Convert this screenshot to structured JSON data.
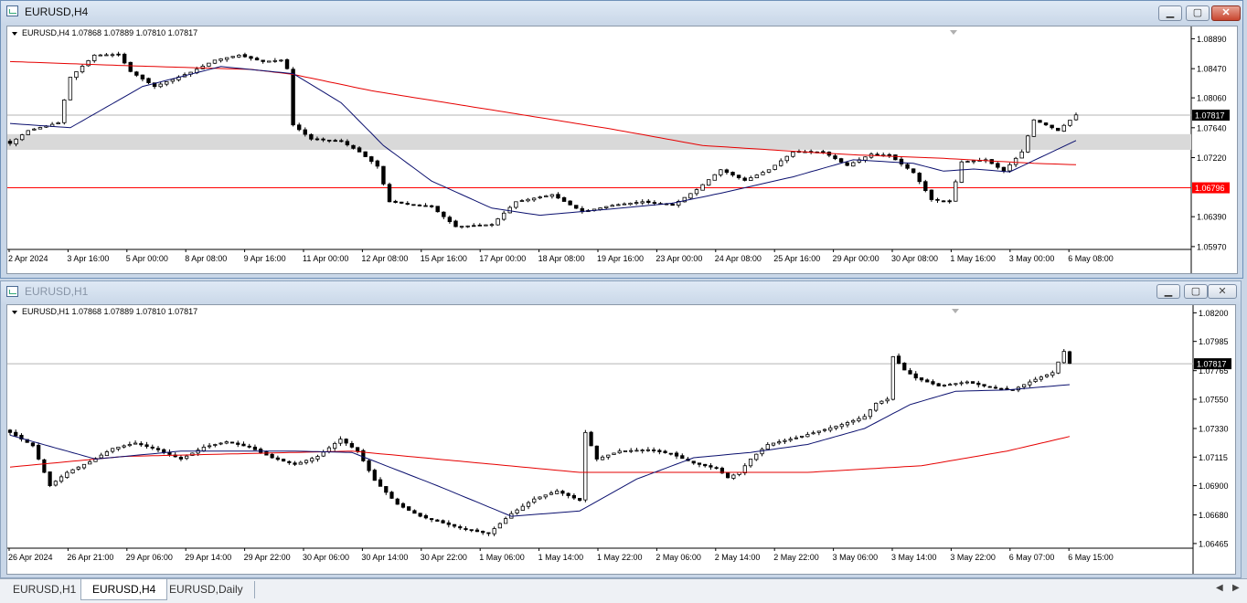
{
  "windows": {
    "h4": {
      "title": "EURUSD,H4"
    },
    "h1": {
      "title": "EURUSD,H1"
    }
  },
  "tabs": [
    "EURUSD,H1",
    "EURUSD,H4",
    "EURUSD,Daily"
  ],
  "active_tab": "EURUSD,H4",
  "colors": {
    "background": "#ffffff",
    "candle_up": "#ffffff",
    "candle_down": "#000000",
    "ma_red": "#e60000",
    "ma_blue": "#0a0f6e",
    "zone": "#d9d9d9",
    "level": "#ff0000"
  },
  "chart_data": [
    {
      "type": "candlestick",
      "symbol_label": "EURUSD,H4  1.07868 1.07889 1.07810 1.07817",
      "x_tick_labels": [
        "2 Apr 2024",
        "3 Apr 16:00",
        "5 Apr 00:00",
        "8 Apr 08:00",
        "9 Apr 16:00",
        "11 Apr 00:00",
        "12 Apr 08:00",
        "15 Apr 16:00",
        "17 Apr 00:00",
        "18 Apr 08:00",
        "19 Apr 16:00",
        "23 Apr 00:00",
        "24 Apr 08:00",
        "25 Apr 16:00",
        "29 Apr 00:00",
        "30 Apr 08:00",
        "1 May 16:00",
        "3 May 00:00",
        "6 May 08:00"
      ],
      "y_tick_labels": [
        "1.08890",
        "1.08470",
        "1.08060",
        "1.07640",
        "1.07220",
        "1.06390",
        "1.05970"
      ],
      "ylim": [
        1.0593,
        1.0896
      ],
      "current_price": 1.07817,
      "current_price_label": "1.07817",
      "level_price": 1.06796,
      "level_price_label": "1.06796",
      "zone": [
        1.0733,
        1.0755
      ],
      "anchors": [
        [
          0,
          1.0742
        ],
        [
          3,
          1.076
        ],
        [
          8,
          1.0771
        ],
        [
          10,
          1.0835
        ],
        [
          14,
          1.0866
        ],
        [
          18,
          1.0867
        ],
        [
          20,
          1.0843
        ],
        [
          24,
          1.0822
        ],
        [
          27,
          1.0832
        ],
        [
          30,
          1.0842
        ],
        [
          34,
          1.0859
        ],
        [
          38,
          1.0866
        ],
        [
          42,
          1.0857
        ],
        [
          45,
          1.0859
        ],
        [
          46,
          1.0847
        ],
        [
          47,
          1.0768
        ],
        [
          50,
          1.0748
        ],
        [
          55,
          1.0745
        ],
        [
          58,
          1.073
        ],
        [
          61,
          1.071
        ],
        [
          63,
          1.066
        ],
        [
          70,
          1.0653
        ],
        [
          74,
          1.0625
        ],
        [
          80,
          1.0628
        ],
        [
          84,
          1.066
        ],
        [
          90,
          1.067
        ],
        [
          95,
          1.0646
        ],
        [
          100,
          1.0655
        ],
        [
          105,
          1.066
        ],
        [
          110,
          1.0655
        ],
        [
          114,
          1.0677
        ],
        [
          118,
          1.0705
        ],
        [
          122,
          1.069
        ],
        [
          126,
          1.0705
        ],
        [
          130,
          1.073
        ],
        [
          135,
          1.073
        ],
        [
          139,
          1.0711
        ],
        [
          143,
          1.0727
        ],
        [
          146,
          1.0725
        ],
        [
          150,
          1.0701
        ],
        [
          153,
          1.0663
        ],
        [
          156,
          1.066
        ],
        [
          158,
          1.0716
        ],
        [
          162,
          1.0719
        ],
        [
          165,
          1.0703
        ],
        [
          168,
          1.073
        ],
        [
          170,
          1.0775
        ],
        [
          172,
          1.0768
        ],
        [
          174,
          1.076
        ],
        [
          177,
          1.0782
        ]
      ],
      "ma_slow_anchors": [
        [
          0,
          1.0857
        ],
        [
          20,
          1.0851
        ],
        [
          40,
          1.0846
        ],
        [
          47,
          1.0839
        ],
        [
          60,
          1.0816
        ],
        [
          80,
          1.0789
        ],
        [
          100,
          1.0762
        ],
        [
          115,
          1.0739
        ],
        [
          130,
          1.0731
        ],
        [
          140,
          1.0726
        ],
        [
          155,
          1.0721
        ],
        [
          170,
          1.0714
        ],
        [
          177,
          1.0712
        ]
      ],
      "ma_fast_anchors": [
        [
          0,
          1.077
        ],
        [
          10,
          1.0764
        ],
        [
          22,
          1.0822
        ],
        [
          35,
          1.085
        ],
        [
          47,
          1.084
        ],
        [
          55,
          1.0799
        ],
        [
          62,
          1.0739
        ],
        [
          70,
          1.0689
        ],
        [
          80,
          1.0651
        ],
        [
          88,
          1.0641
        ],
        [
          100,
          1.065
        ],
        [
          110,
          1.0658
        ],
        [
          118,
          1.0672
        ],
        [
          130,
          1.0695
        ],
        [
          140,
          1.0719
        ],
        [
          150,
          1.0714
        ],
        [
          155,
          1.0703
        ],
        [
          160,
          1.0706
        ],
        [
          166,
          1.0702
        ],
        [
          170,
          1.0718
        ],
        [
          177,
          1.0746
        ]
      ]
    },
    {
      "type": "candlestick",
      "symbol_label": "EURUSD,H1  1.07868 1.07889 1.07810 1.07817",
      "x_tick_labels": [
        "26 Apr 2024",
        "26 Apr 21:00",
        "29 Apr 06:00",
        "29 Apr 14:00",
        "29 Apr 22:00",
        "30 Apr 06:00",
        "30 Apr 14:00",
        "30 Apr 22:00",
        "1 May 06:00",
        "1 May 14:00",
        "1 May 22:00",
        "2 May 06:00",
        "2 May 14:00",
        "2 May 22:00",
        "3 May 06:00",
        "3 May 14:00",
        "3 May 22:00",
        "6 May 07:00",
        "6 May 15:00"
      ],
      "y_tick_labels": [
        "1.08200",
        "1.07985",
        "1.07765",
        "1.07550",
        "1.07330",
        "1.07115",
        "1.06900",
        "1.06680",
        "1.06465"
      ],
      "ylim": [
        1.0643,
        1.0823
      ],
      "current_price": 1.07817,
      "current_price_label": "1.07817",
      "anchors": [
        [
          0,
          1.073
        ],
        [
          4,
          1.072
        ],
        [
          7,
          1.069
        ],
        [
          10,
          1.07
        ],
        [
          14,
          1.0708
        ],
        [
          18,
          1.0718
        ],
        [
          22,
          1.0722
        ],
        [
          26,
          1.0717
        ],
        [
          30,
          1.071
        ],
        [
          34,
          1.0719
        ],
        [
          38,
          1.0723
        ],
        [
          42,
          1.0719
        ],
        [
          46,
          1.0711
        ],
        [
          50,
          1.0706
        ],
        [
          54,
          1.0712
        ],
        [
          58,
          1.0725
        ],
        [
          61,
          1.0716
        ],
        [
          64,
          1.0694
        ],
        [
          68,
          1.0676
        ],
        [
          72,
          1.0667
        ],
        [
          76,
          1.0662
        ],
        [
          80,
          1.0657
        ],
        [
          84,
          1.0654
        ],
        [
          88,
          1.0669
        ],
        [
          92,
          1.068
        ],
        [
          96,
          1.0686
        ],
        [
          100,
          1.0679
        ],
        [
          101,
          1.073
        ],
        [
          103,
          1.071
        ],
        [
          107,
          1.0716
        ],
        [
          112,
          1.0717
        ],
        [
          116,
          1.0714
        ],
        [
          120,
          1.0707
        ],
        [
          124,
          1.0703
        ],
        [
          126,
          1.0696
        ],
        [
          128,
          1.07
        ],
        [
          130,
          1.071
        ],
        [
          133,
          1.0721
        ],
        [
          138,
          1.0726
        ],
        [
          142,
          1.0731
        ],
        [
          146,
          1.0736
        ],
        [
          150,
          1.0742
        ],
        [
          152,
          1.0752
        ],
        [
          154,
          1.0755
        ],
        [
          155,
          1.0787
        ],
        [
          157,
          1.0777
        ],
        [
          159,
          1.0771
        ],
        [
          163,
          1.0765
        ],
        [
          168,
          1.0768
        ],
        [
          172,
          1.0764
        ],
        [
          176,
          1.0762
        ],
        [
          180,
          1.077
        ],
        [
          183,
          1.0775
        ],
        [
          185,
          1.0791
        ],
        [
          186,
          1.0782
        ]
      ],
      "ma_slow_anchors": [
        [
          0,
          1.0704
        ],
        [
          20,
          1.0712
        ],
        [
          40,
          1.0714
        ],
        [
          60,
          1.0716
        ],
        [
          80,
          1.0708
        ],
        [
          100,
          1.07
        ],
        [
          120,
          1.07
        ],
        [
          140,
          1.07
        ],
        [
          160,
          1.0705
        ],
        [
          175,
          1.0716
        ],
        [
          186,
          1.0727
        ]
      ],
      "ma_fast_anchors": [
        [
          0,
          1.0728
        ],
        [
          15,
          1.071
        ],
        [
          30,
          1.0716
        ],
        [
          50,
          1.0716
        ],
        [
          60,
          1.0715
        ],
        [
          75,
          1.069
        ],
        [
          88,
          1.0667
        ],
        [
          100,
          1.0671
        ],
        [
          110,
          1.0695
        ],
        [
          120,
          1.0711
        ],
        [
          130,
          1.0715
        ],
        [
          140,
          1.0721
        ],
        [
          150,
          1.0733
        ],
        [
          158,
          1.0751
        ],
        [
          166,
          1.0761
        ],
        [
          175,
          1.0762
        ],
        [
          186,
          1.0766
        ]
      ]
    }
  ]
}
